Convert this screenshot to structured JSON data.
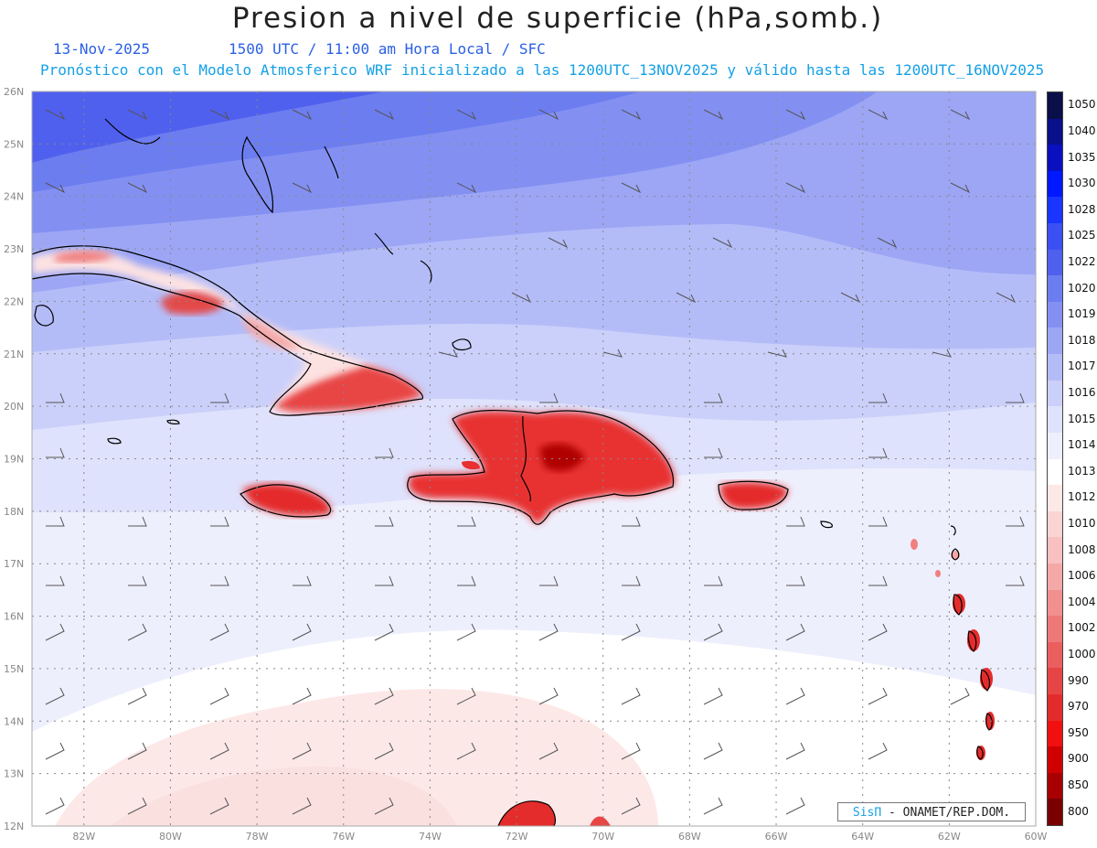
{
  "header": {
    "title": "Presion a nivel de superficie (hPa,somb.)",
    "date": "13-Nov-2025",
    "time": "1500 UTC / 11:00 am Hora Local / SFC",
    "description": "Pronóstico con el Modelo Atmosferico WRF inicializado a las 1200UTC_13NOV2025 y válido hasta las  1200UTC_16NOV2025"
  },
  "map": {
    "lat_labels": [
      "26N",
      "25N",
      "24N",
      "23N",
      "22N",
      "21N",
      "20N",
      "19N",
      "18N",
      "17N",
      "16N",
      "15N",
      "14N",
      "13N",
      "12N"
    ],
    "lon_labels": [
      "82W",
      "80W",
      "78W",
      "76W",
      "74W",
      "72W",
      "70W",
      "68W",
      "66W",
      "64W",
      "62W",
      "60W"
    ],
    "lat_range": [
      12,
      26
    ],
    "lon_range": [
      -83.2,
      -60
    ],
    "grid": "dotted"
  },
  "legend": {
    "levels": [
      {
        "label": "1050",
        "color": "#0a0f4a"
      },
      {
        "label": "1040",
        "color": "#0a0f8a"
      },
      {
        "label": "1035",
        "color": "#0a10c0"
      },
      {
        "label": "1030",
        "color": "#0018ff"
      },
      {
        "label": "1028",
        "color": "#1a35ff"
      },
      {
        "label": "1025",
        "color": "#3a50f2"
      },
      {
        "label": "1022",
        "color": "#5060ee"
      },
      {
        "label": "1020",
        "color": "#6c7df0"
      },
      {
        "label": "1019",
        "color": "#8390f2"
      },
      {
        "label": "1018",
        "color": "#9ca6f5"
      },
      {
        "label": "1017",
        "color": "#b4bcf8"
      },
      {
        "label": "1016",
        "color": "#cbd0fa"
      },
      {
        "label": "1015",
        "color": "#dfe2fc"
      },
      {
        "label": "1014",
        "color": "#eeeffd"
      },
      {
        "label": "1013",
        "color": "#ffffff"
      },
      {
        "label": "1012",
        "color": "#fde8e8"
      },
      {
        "label": "1010",
        "color": "#fad4d4"
      },
      {
        "label": "1008",
        "color": "#f8c0c0"
      },
      {
        "label": "1006",
        "color": "#f5a8a8"
      },
      {
        "label": "1004",
        "color": "#f28f8f"
      },
      {
        "label": "1002",
        "color": "#ee7878"
      },
      {
        "label": "1000",
        "color": "#ea5e5e"
      },
      {
        "label": "990",
        "color": "#e64545"
      },
      {
        "label": "970",
        "color": "#e22c2c"
      },
      {
        "label": "950",
        "color": "#f01010"
      },
      {
        "label": "900",
        "color": "#d00000"
      },
      {
        "label": "850",
        "color": "#a80000"
      },
      {
        "label": "800",
        "color": "#7a0000"
      }
    ]
  },
  "credit": {
    "brand": "SisΠ",
    "org": " - ONAMET/REP.DOM."
  }
}
